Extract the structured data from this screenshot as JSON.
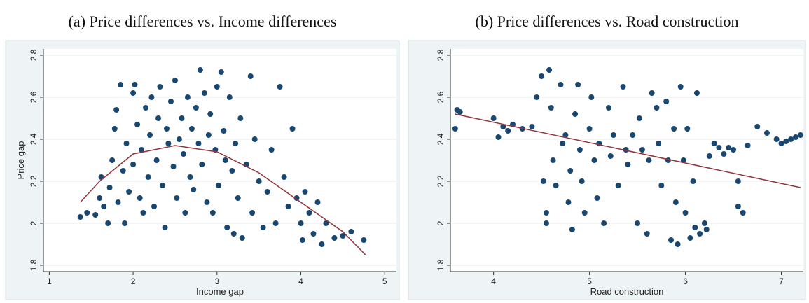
{
  "chart_data": [
    {
      "type": "scatter",
      "title": "(a) Price differences vs. Income differences",
      "xlabel": "Income gap",
      "ylabel": "Price gap",
      "xlim": [
        0.93,
        5.14
      ],
      "ylim": [
        1.77,
        2.83
      ],
      "xticks": [
        1,
        2,
        3,
        4,
        5
      ],
      "yticks": [
        1.8,
        2,
        2.2,
        2.4,
        2.6,
        2.8
      ],
      "grid": true,
      "series": [
        {
          "mode": "markers",
          "color": "#1a476f",
          "x": [
            1.37,
            1.45,
            1.55,
            1.6,
            1.62,
            1.65,
            1.7,
            1.72,
            1.75,
            1.78,
            1.8,
            1.82,
            1.85,
            1.88,
            1.9,
            1.92,
            1.95,
            2.0,
            2.0,
            2.02,
            2.05,
            2.08,
            2.1,
            2.12,
            2.15,
            2.18,
            2.2,
            2.22,
            2.25,
            2.28,
            2.3,
            2.32,
            2.35,
            2.38,
            2.4,
            2.42,
            2.45,
            2.48,
            2.5,
            2.52,
            2.55,
            2.58,
            2.6,
            2.62,
            2.65,
            2.68,
            2.7,
            2.72,
            2.75,
            2.78,
            2.8,
            2.82,
            2.85,
            2.88,
            2.9,
            2.92,
            2.95,
            2.98,
            3.0,
            3.02,
            3.05,
            3.08,
            3.1,
            3.12,
            3.15,
            3.18,
            3.2,
            3.22,
            3.25,
            3.28,
            3.3,
            3.35,
            3.4,
            3.42,
            3.45,
            3.5,
            3.55,
            3.6,
            3.65,
            3.7,
            3.75,
            3.8,
            3.85,
            3.9,
            3.95,
            4.0,
            4.02,
            4.05,
            4.1,
            4.15,
            4.2,
            4.25,
            4.3,
            4.4,
            4.5,
            4.6,
            4.75
          ],
          "values": [
            2.03,
            2.05,
            2.04,
            2.12,
            2.22,
            2.08,
            2.0,
            2.17,
            2.3,
            2.45,
            2.54,
            2.1,
            2.66,
            2.25,
            2.0,
            2.38,
            2.15,
            2.62,
            2.28,
            2.66,
            2.47,
            2.12,
            2.35,
            2.05,
            2.55,
            2.22,
            2.42,
            2.6,
            2.08,
            2.3,
            2.5,
            2.65,
            2.18,
            1.98,
            2.45,
            2.38,
            2.58,
            2.27,
            2.68,
            2.12,
            2.4,
            2.5,
            2.33,
            2.05,
            2.6,
            2.22,
            2.45,
            2.16,
            2.55,
            2.38,
            2.73,
            2.28,
            2.62,
            2.1,
            2.42,
            2.52,
            2.05,
            2.35,
            2.65,
            2.18,
            2.72,
            2.44,
            2.3,
            1.98,
            2.6,
            2.25,
            1.95,
            2.38,
            2.12,
            2.5,
            1.93,
            2.28,
            2.7,
            2.05,
            2.4,
            2.2,
            1.98,
            2.15,
            2.35,
            2.0,
            2.65,
            2.22,
            2.08,
            2.45,
            2.12,
            2.0,
            1.92,
            2.15,
            2.05,
            1.95,
            2.1,
            1.9,
            2.0,
            1.93,
            1.94,
            1.96,
            1.92
          ]
        },
        {
          "mode": "line",
          "color": "#90353b",
          "x": [
            1.37,
            1.6,
            2.0,
            2.5,
            3.0,
            3.5,
            4.0,
            4.5,
            4.77
          ],
          "values": [
            2.1,
            2.2,
            2.33,
            2.37,
            2.34,
            2.24,
            2.1,
            1.96,
            1.85
          ]
        }
      ]
    },
    {
      "type": "scatter",
      "title": "(b) Price differences vs. Road construction",
      "xlabel": "Road construction",
      "xlim": [
        3.55,
        7.23
      ],
      "ylim": [
        1.77,
        2.83
      ],
      "xticks": [
        4,
        5,
        6,
        7
      ],
      "yticks": [
        1.8,
        2,
        2.2,
        2.4,
        2.6,
        2.8
      ],
      "grid": true,
      "series": [
        {
          "mode": "markers",
          "color": "#1a476f",
          "x": [
            3.6,
            3.62,
            3.65,
            4.0,
            4.05,
            4.1,
            4.15,
            4.2,
            4.3,
            4.4,
            4.45,
            4.5,
            4.52,
            4.55,
            4.55,
            4.58,
            4.6,
            4.62,
            4.65,
            4.7,
            4.72,
            4.75,
            4.78,
            4.8,
            4.82,
            4.85,
            4.88,
            4.9,
            4.92,
            4.95,
            5.0,
            5.02,
            5.05,
            5.08,
            5.1,
            5.15,
            5.2,
            5.22,
            5.25,
            5.3,
            5.35,
            5.38,
            5.4,
            5.45,
            5.5,
            5.52,
            5.55,
            5.6,
            5.62,
            5.65,
            5.7,
            5.72,
            5.75,
            5.8,
            5.82,
            5.85,
            5.88,
            5.9,
            5.92,
            5.95,
            5.98,
            6.0,
            6.02,
            6.05,
            6.08,
            6.1,
            6.12,
            6.15,
            6.2,
            6.22,
            6.25,
            6.3,
            6.35,
            6.4,
            6.45,
            6.5,
            6.55,
            6.55,
            6.6,
            6.65,
            6.75,
            6.85,
            6.95,
            7.0,
            7.05,
            7.1,
            7.15,
            7.2
          ],
          "values": [
            2.45,
            2.54,
            2.53,
            2.5,
            2.41,
            2.46,
            2.44,
            2.47,
            2.45,
            2.46,
            2.6,
            2.7,
            2.2,
            2.05,
            2.0,
            2.73,
            2.55,
            2.3,
            2.18,
            2.66,
            2.38,
            2.42,
            2.1,
            2.25,
            1.97,
            2.52,
            2.66,
            2.35,
            2.2,
            2.05,
            2.45,
            2.6,
            2.3,
            2.12,
            2.38,
            2.0,
            2.55,
            2.32,
            2.42,
            2.18,
            2.65,
            2.35,
            2.28,
            2.42,
            2.0,
            2.5,
            2.35,
            1.95,
            2.3,
            2.62,
            2.55,
            2.38,
            2.18,
            2.58,
            2.3,
            1.92,
            2.45,
            2.1,
            1.9,
            2.65,
            2.3,
            2.05,
            2.45,
            1.93,
            2.2,
            1.98,
            2.62,
            1.95,
            2.0,
            1.97,
            2.32,
            2.38,
            2.36,
            2.33,
            2.36,
            2.35,
            2.2,
            2.08,
            2.05,
            2.37,
            2.46,
            2.43,
            2.4,
            2.38,
            2.39,
            2.4,
            2.41,
            2.42
          ]
        },
        {
          "mode": "line",
          "color": "#90353b",
          "x": [
            3.6,
            7.2
          ],
          "values": [
            2.52,
            2.17
          ]
        }
      ]
    }
  ]
}
